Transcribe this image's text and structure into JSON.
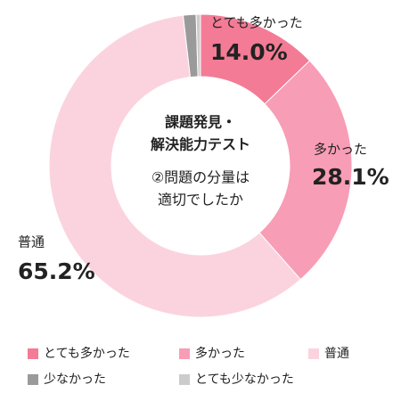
{
  "chart_data": {
    "type": "donut",
    "title_lines": [
      "課題発見・",
      "解決能力テスト",
      "②問題の分量は",
      "適切でしたか"
    ],
    "categories": [
      "とても多かった",
      "多かった",
      "普通",
      "少なかった",
      "とても少なかった"
    ],
    "values": [
      14.0,
      28.1,
      65.2,
      1.5,
      0.5
    ],
    "value_labels": [
      "14.0%",
      "28.1%",
      "65.2%",
      null,
      null
    ],
    "colors": [
      "#f37b95",
      "#f89db6",
      "#fbd3de",
      "#9a9a9a",
      "#cccccc"
    ],
    "legend": "bottom"
  }
}
